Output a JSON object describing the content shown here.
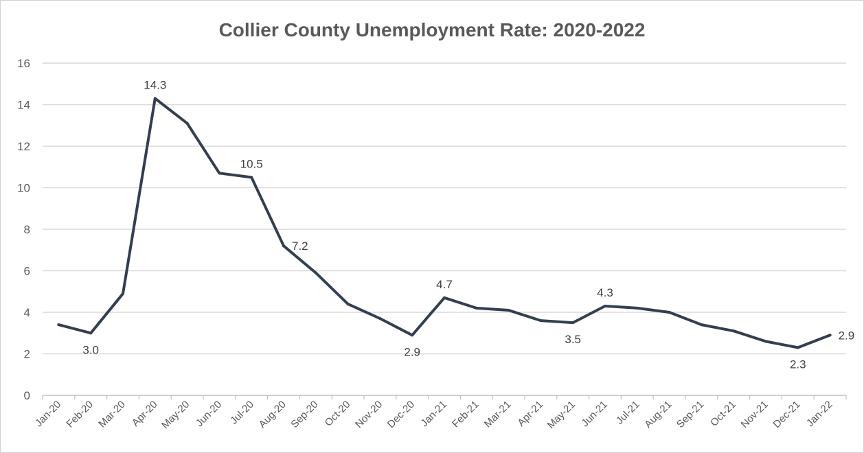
{
  "chart_data": {
    "type": "line",
    "title": "Collier County Unemployment Rate: 2020-2022",
    "xlabel": "",
    "ylabel": "",
    "ylim": [
      0,
      16
    ],
    "yticks": [
      0,
      2,
      4,
      6,
      8,
      10,
      12,
      14,
      16
    ],
    "grid": true,
    "legend": "none",
    "line_color": "#333f50",
    "categories": [
      "Jan-20",
      "Feb-20",
      "Mar-20",
      "Apr-20",
      "May-20",
      "Jun-20",
      "Jul-20",
      "Aug-20",
      "Sep-20",
      "Oct-20",
      "Nov-20",
      "Dec-20",
      "Jan-21",
      "Feb-21",
      "Mar-21",
      "Apr-21",
      "May-21",
      "Jun-21",
      "Jul-21",
      "Aug-21",
      "Sep-21",
      "Oct-21",
      "Nov-21",
      "Dec-21",
      "Jan-22"
    ],
    "series": [
      {
        "values": [
          3.4,
          3.0,
          4.9,
          14.3,
          13.1,
          10.7,
          10.5,
          7.2,
          5.9,
          4.4,
          3.7,
          2.9,
          4.7,
          4.2,
          4.1,
          3.6,
          3.5,
          4.3,
          4.2,
          4.0,
          3.4,
          3.1,
          2.6,
          2.3,
          2.9
        ]
      }
    ],
    "data_labels": [
      {
        "index": 1,
        "text": "3.0",
        "position": "below"
      },
      {
        "index": 3,
        "text": "14.3",
        "position": "above"
      },
      {
        "index": 6,
        "text": "10.5",
        "position": "above"
      },
      {
        "index": 7,
        "text": "7.2",
        "position": "right"
      },
      {
        "index": 11,
        "text": "2.9",
        "position": "below"
      },
      {
        "index": 12,
        "text": "4.7",
        "position": "above"
      },
      {
        "index": 16,
        "text": "3.5",
        "position": "below"
      },
      {
        "index": 17,
        "text": "4.3",
        "position": "above"
      },
      {
        "index": 23,
        "text": "2.3",
        "position": "below"
      },
      {
        "index": 24,
        "text": "2.9",
        "position": "right"
      }
    ]
  }
}
